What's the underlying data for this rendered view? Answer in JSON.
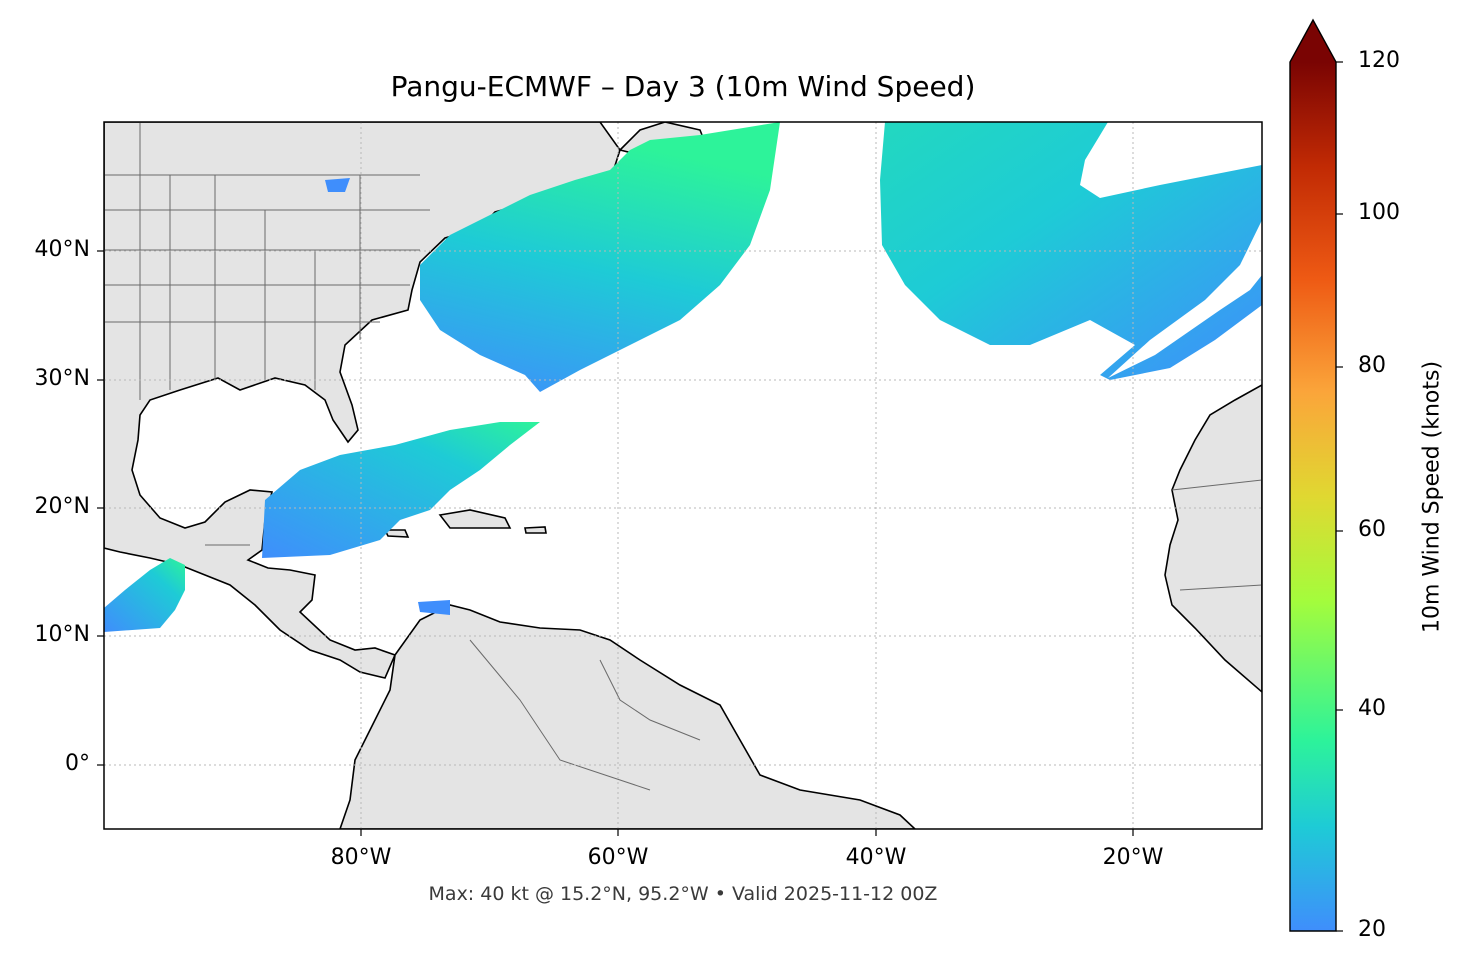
{
  "title": "Pangu-ECMWF – Day 3 (10m Wind Speed)",
  "footer": "Max: 40 kt @ 15.2°N, 95.2°W • Valid 2025-11-12 00Z",
  "axes": {
    "lat_ticks": [
      "40°N",
      "30°N",
      "20°N",
      "10°N",
      "0°"
    ],
    "lon_ticks": [
      "80°W",
      "60°W",
      "40°W",
      "20°W"
    ],
    "lon_range": [
      -100,
      -10
    ],
    "lat_range": [
      -5,
      50
    ],
    "grid": true
  },
  "colorbar": {
    "label": "10m Wind Speed (knots)",
    "ticks": [
      "120",
      "100",
      "80",
      "60",
      "40",
      "20"
    ],
    "range": [
      20,
      120
    ],
    "extend": "max",
    "colors": [
      "#3f8efc",
      "#1ecbd6",
      "#2df39a",
      "#a4fc3c",
      "#e0d831",
      "#fba53a",
      "#ee5a14",
      "#c12a04",
      "#7a0403"
    ]
  },
  "colors": {
    "land": "#e4e4e4",
    "ocean": "#ffffff",
    "low_wind": "#3f8efc",
    "mid_wind": "#1ecbd6",
    "peak_wind": "#2df39a"
  }
}
